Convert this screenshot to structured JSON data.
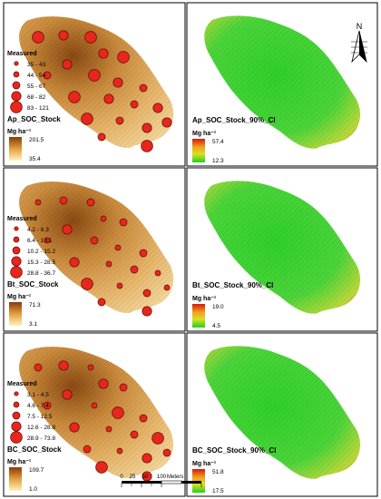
{
  "north_label": "N",
  "scale_bar": {
    "ticks": [
      "0",
      "25",
      "50",
      "100"
    ],
    "unit": "Meters"
  },
  "rows": [
    {
      "measured_title": "Measured",
      "classes": [
        "35 - 43",
        "44 - 54",
        "55 - 67",
        "68 - 82",
        "83 - 121"
      ],
      "stock_title": "Ap_SOC_Stock",
      "unit_label": "Mg ha⁻¹",
      "stock_max": "201.5",
      "stock_min": "35.4",
      "ci_title": "Ap_SOC_Stock_90%_CI",
      "ci_unit": "Mg ha⁻¹",
      "ci_max": "57.4",
      "ci_min": "12.3",
      "samples": [
        {
          "cls": 4
        },
        {
          "cls": 3
        },
        {
          "cls": 4
        },
        {
          "cls": 3
        },
        {
          "cls": 4
        },
        {
          "cls": 3
        },
        {
          "cls": 2
        },
        {
          "cls": 4
        },
        {
          "cls": 3
        },
        {
          "cls": 2
        },
        {
          "cls": 4
        },
        {
          "cls": 3
        },
        {
          "cls": 2
        },
        {
          "cls": 3
        },
        {
          "cls": 4
        },
        {
          "cls": 2
        },
        {
          "cls": 3
        },
        {
          "cls": 3
        },
        {
          "cls": 2
        },
        {
          "cls": 4
        }
      ]
    },
    {
      "measured_title": "Measured",
      "classes": [
        "4.2 - 6.3",
        "6.4 - 10.1",
        "10.2 - 15.2",
        "15.3 - 28.5",
        "28.8 - 36.7"
      ],
      "stock_title": "Bt_SOC_Stock",
      "unit_label": "Mg ha⁻¹",
      "stock_max": "71.3",
      "stock_min": "3.1",
      "ci_title": "Bt_SOC_Stock_90%_CI",
      "ci_unit": "Mg ha⁻¹",
      "ci_max": "19.0",
      "ci_min": "4.5",
      "samples": [
        {
          "cls": 1
        },
        {
          "cls": 2
        },
        {
          "cls": 2
        },
        {
          "cls": 1
        },
        {
          "cls": 2
        },
        {
          "cls": 3
        },
        {
          "cls": 1
        },
        {
          "cls": 2
        },
        {
          "cls": 1
        },
        {
          "cls": 2
        },
        {
          "cls": 3
        },
        {
          "cls": 1
        },
        {
          "cls": 2
        },
        {
          "cls": 1
        },
        {
          "cls": 4
        },
        {
          "cls": 1
        },
        {
          "cls": 2
        },
        {
          "cls": 1
        },
        {
          "cls": 2
        },
        {
          "cls": 3
        }
      ]
    },
    {
      "measured_title": "Measured",
      "classes": [
        "3.1 - 4.5",
        "4.6 - 7.4",
        "7.5 - 12.5",
        "12.6 - 28.8",
        "28.9 - 73.8"
      ],
      "stock_title": "BC_SOC_Stock",
      "unit_label": "Mg ha⁻¹",
      "stock_max": "109.7",
      "stock_min": "1.0",
      "ci_title": "BC_SOC_Stock_90%_CI",
      "ci_unit": "Mg ha⁻¹",
      "ci_max": "51.8",
      "ci_min": "17.5",
      "samples": [
        {
          "cls": 2
        },
        {
          "cls": 3
        },
        {
          "cls": 1
        },
        {
          "cls": 3
        },
        {
          "cls": 2
        },
        {
          "cls": 3
        },
        {
          "cls": 2
        },
        {
          "cls": 1
        },
        {
          "cls": 4
        },
        {
          "cls": 2
        },
        {
          "cls": 3
        },
        {
          "cls": 1
        },
        {
          "cls": 2
        },
        {
          "cls": 4
        },
        {
          "cls": 2
        },
        {
          "cls": 1
        },
        {
          "cls": 3
        },
        {
          "cls": 2
        },
        {
          "cls": 4
        },
        {
          "cls": 3
        }
      ]
    }
  ]
}
